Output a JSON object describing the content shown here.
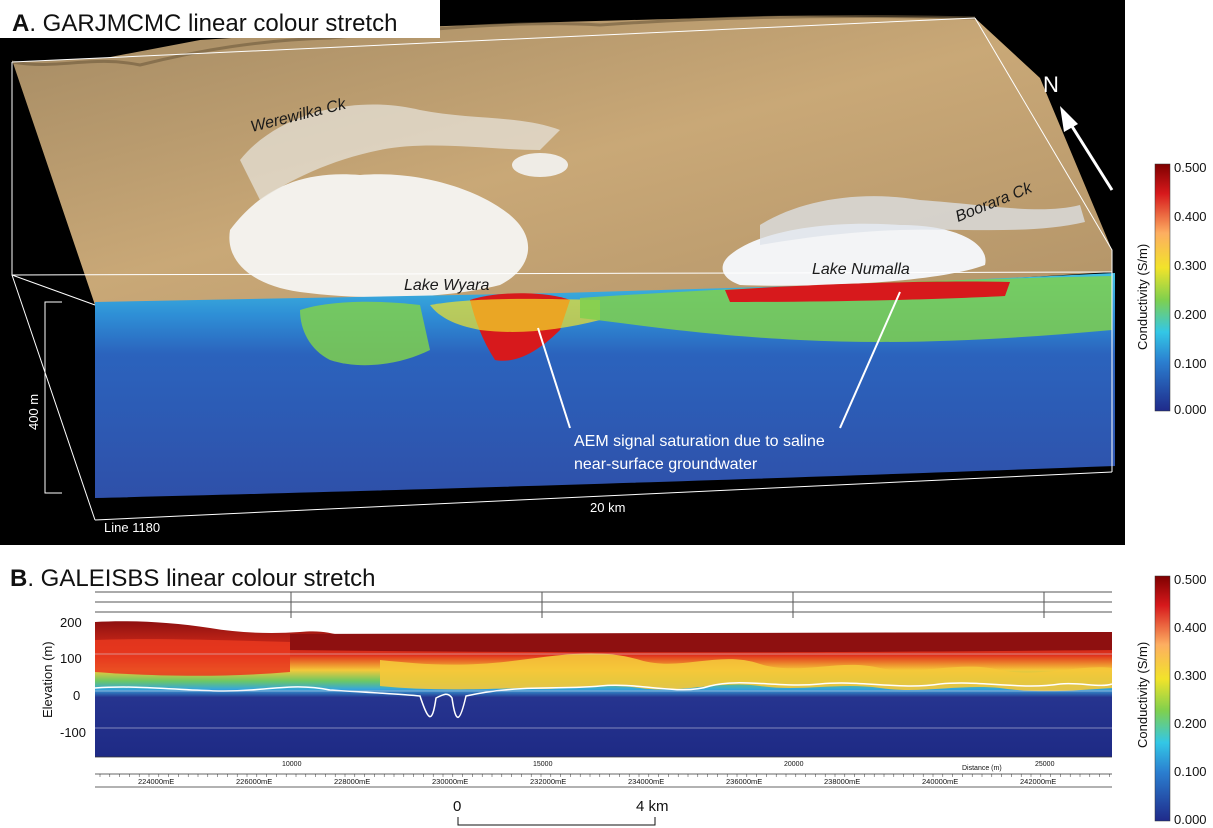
{
  "panel_a": {
    "letter": "A",
    "title_rest": ". GARJMCMC linear colour stretch",
    "labels": {
      "werewilka": "Werewilka Ck",
      "boorara": "Boorara Ck",
      "lake_wyara": "Lake Wyara",
      "lake_numalla": "Lake Numalla",
      "north": "N",
      "depth_scale": "400 m",
      "length_scale": "20 km",
      "line": "Line 1180",
      "annotation_line1": "AEM signal saturation due to saline",
      "annotation_line2": "near-surface groundwater"
    },
    "colorbar": {
      "label": "Conductivity (S/m)",
      "ticks": [
        "0.500",
        "0.400",
        "0.300",
        "0.200",
        "0.100",
        "0.000"
      ]
    }
  },
  "panel_b": {
    "letter": "B",
    "title_rest": ". GALEISBS linear colour stretch",
    "colorbar": {
      "label": "Conductivity (S/m)",
      "ticks": [
        "0.500",
        "0.400",
        "0.300",
        "0.200",
        "0.100",
        "0.000"
      ]
    }
  },
  "chart_data": {
    "type": "heatmap",
    "ylabel": "Elevation (m)",
    "y_ticks": [
      "200",
      "100",
      "0",
      "-100"
    ],
    "ylim": [
      -170,
      210
    ],
    "x_ticks": [
      "10000",
      "15000",
      "20000",
      "25000"
    ],
    "xlabel": "Distance (m)",
    "easting_ticks": [
      "224000mE",
      "226000mE",
      "228000mE",
      "230000mE",
      "232000mE",
      "234000mE",
      "236000mE",
      "238000mE",
      "240000mE",
      "242000mE"
    ],
    "scale_bar": {
      "start": "0",
      "end": "4 km"
    },
    "colorbar_range": [
      0.0,
      0.5
    ]
  }
}
